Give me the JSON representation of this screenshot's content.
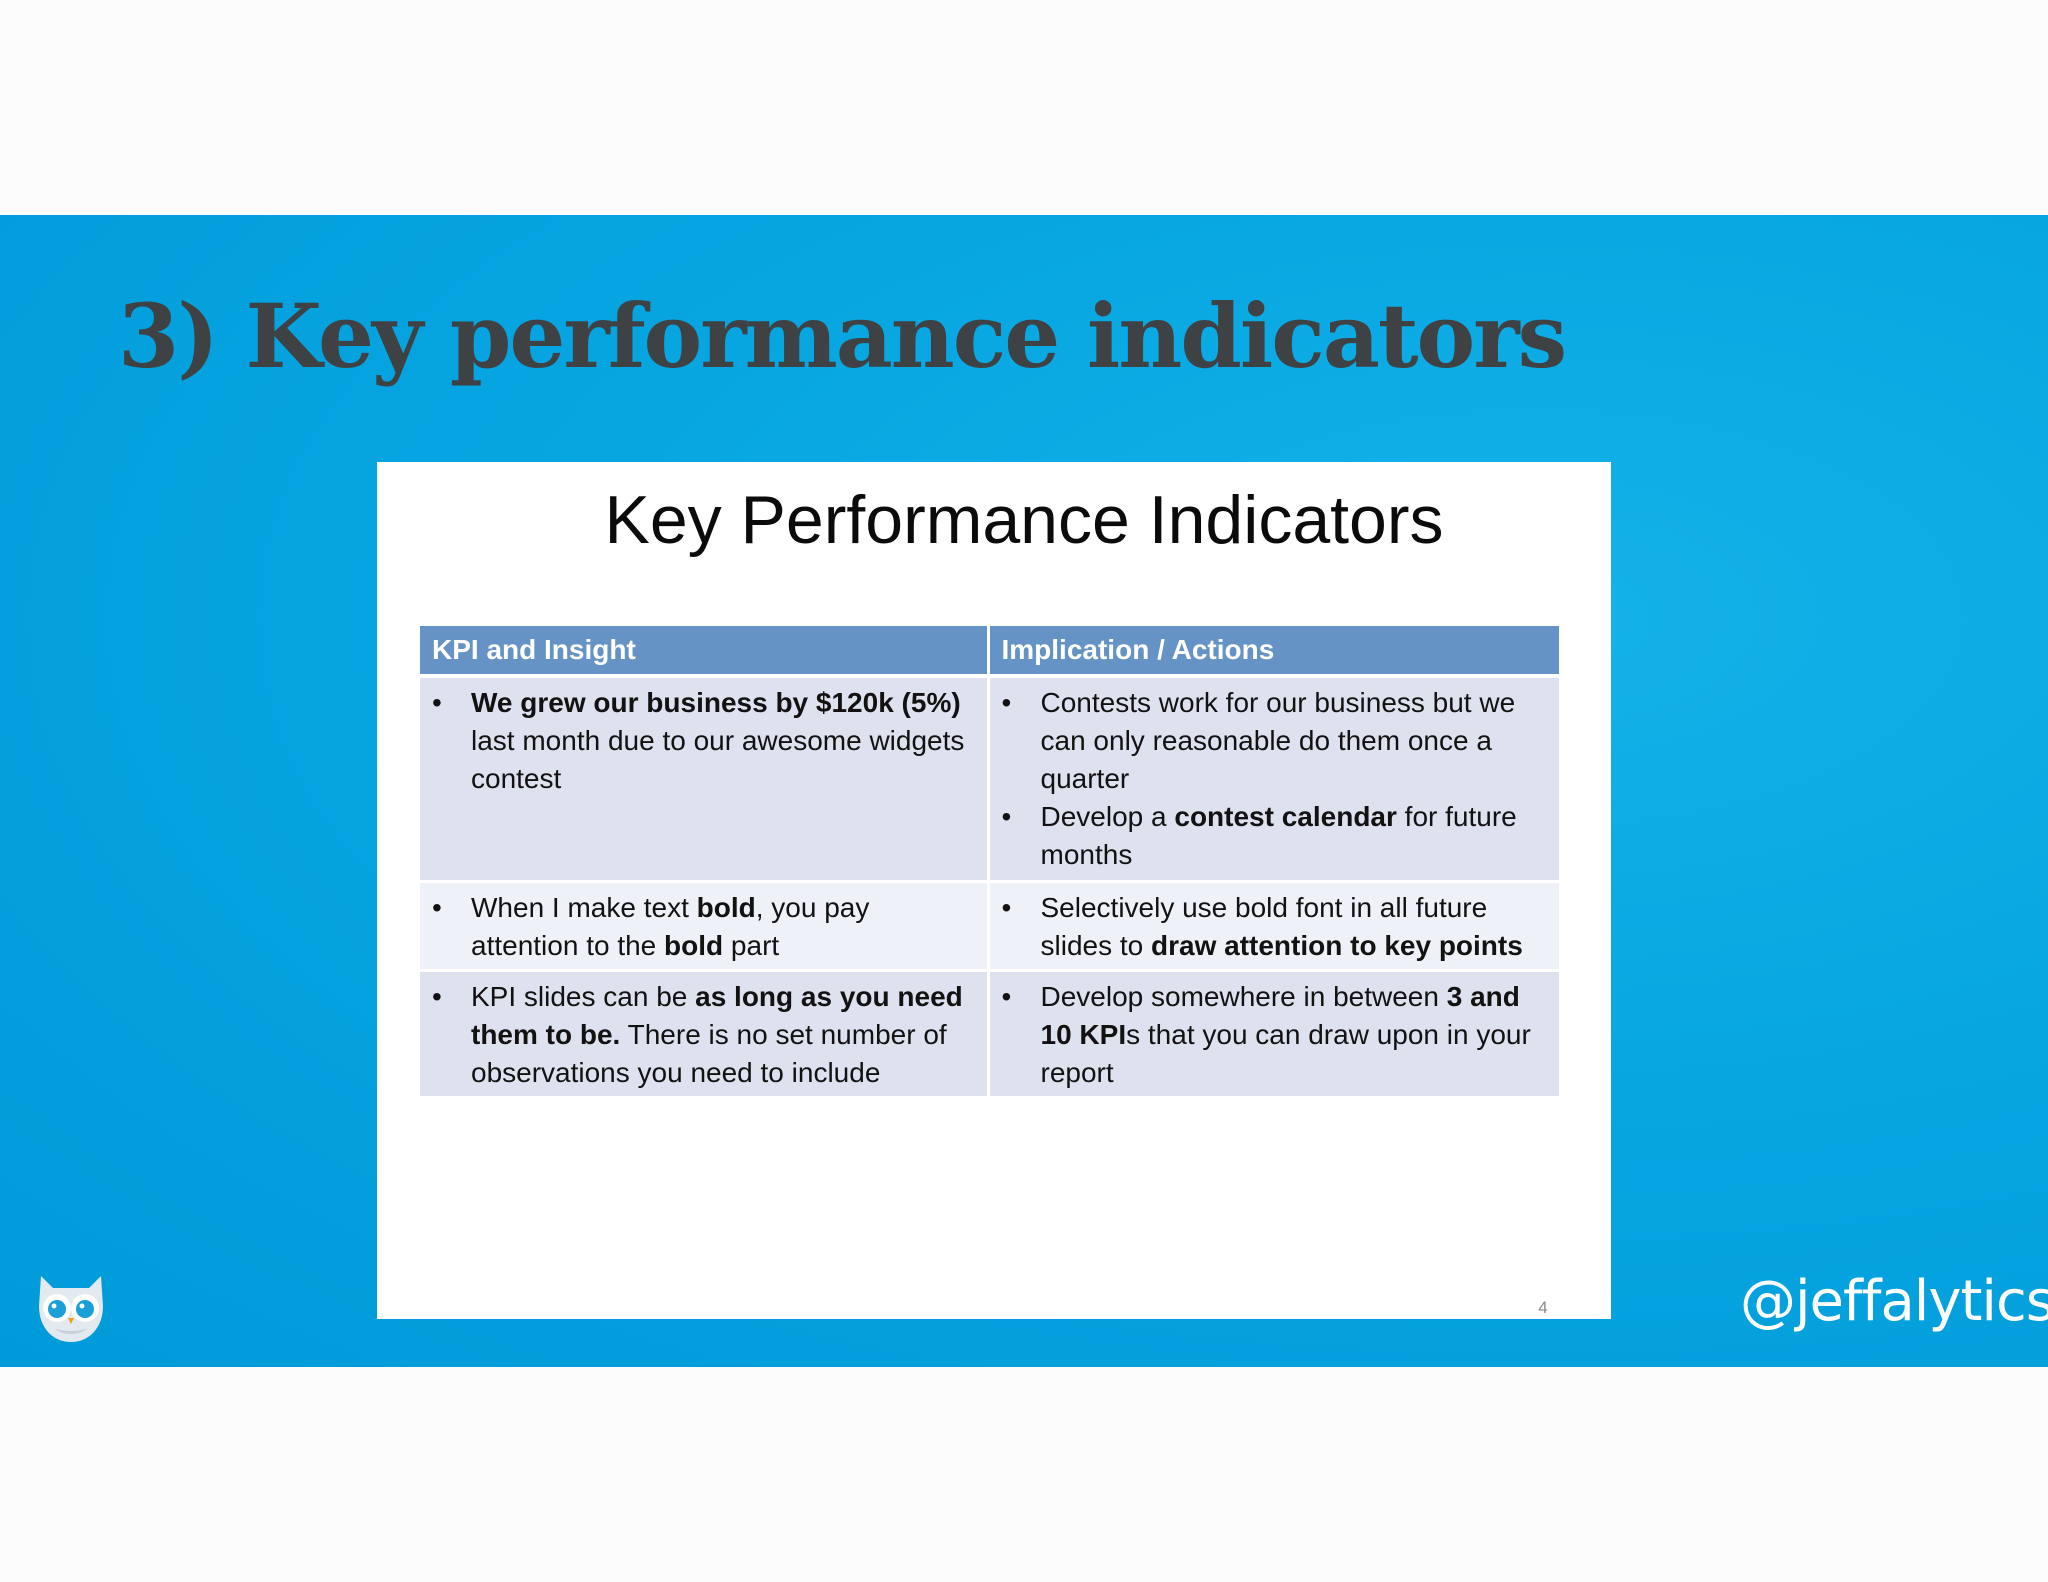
{
  "presentation": {
    "title": "3) Key performance indicators",
    "twitter_handle": "@jeffalytics",
    "logo_icon": "owl-icon",
    "colors": {
      "band": "#009ad8",
      "title_text": "#3f4244",
      "table_header": "#6593c6",
      "row_dark": "#dde2ee",
      "row_light": "#eef1f7"
    }
  },
  "slide": {
    "title": "Key Performance Indicators",
    "page_number": "4",
    "table": {
      "headers": [
        "KPI and Insight",
        "Implication / Actions"
      ],
      "rows": [
        {
          "kpi": [
            [
              {
                "t": "We grew our business by $120k (5%)",
                "b": true
              },
              {
                "t": " last month due to our awesome widgets contest",
                "b": false
              }
            ]
          ],
          "actions": [
            [
              {
                "t": "Contests work for our business but we can only reasonable do them once a quarter",
                "b": false
              }
            ],
            [
              {
                "t": "Develop a ",
                "b": false
              },
              {
                "t": "contest calendar",
                "b": true
              },
              {
                "t": " for future months",
                "b": false
              }
            ]
          ]
        },
        {
          "kpi": [
            [
              {
                "t": "When I make text ",
                "b": false
              },
              {
                "t": "bold",
                "b": true
              },
              {
                "t": ", you pay attention to the ",
                "b": false
              },
              {
                "t": "bold",
                "b": true
              },
              {
                "t": " part",
                "b": false
              }
            ]
          ],
          "actions": [
            [
              {
                "t": "Selectively use bold font in all future slides to ",
                "b": false
              },
              {
                "t": "draw attention to key points",
                "b": true
              }
            ]
          ]
        },
        {
          "kpi": [
            [
              {
                "t": "KPI slides can be ",
                "b": false
              },
              {
                "t": "as long as you need them to be.",
                "b": true
              },
              {
                "t": " There is no set number of observations you need to include",
                "b": false
              }
            ]
          ],
          "actions": [
            [
              {
                "t": "Develop somewhere in between ",
                "b": false
              },
              {
                "t": "3 and 10 KPI",
                "b": true
              },
              {
                "t": "s that you can draw upon in your report",
                "b": false
              }
            ]
          ]
        }
      ]
    }
  }
}
